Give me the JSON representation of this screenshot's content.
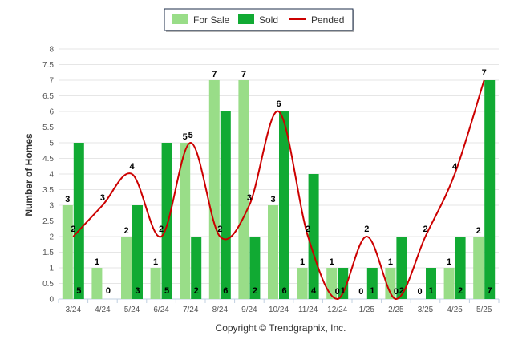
{
  "chart_data": {
    "type": "bar",
    "categories": [
      "3/24",
      "4/24",
      "5/24",
      "6/24",
      "7/24",
      "8/24",
      "9/24",
      "10/24",
      "11/24",
      "12/24",
      "1/25",
      "2/25",
      "3/25",
      "4/25",
      "5/25"
    ],
    "series": [
      {
        "name": "For Sale",
        "kind": "bar",
        "color": "#99DD88",
        "values": [
          3,
          1,
          2,
          1,
          5,
          7,
          7,
          3,
          1,
          1,
          0,
          1,
          0,
          1,
          2
        ]
      },
      {
        "name": "Sold",
        "kind": "bar",
        "color": "#11AA33",
        "values": [
          5,
          0,
          3,
          5,
          2,
          6,
          2,
          6,
          4,
          1,
          1,
          2,
          1,
          2,
          7
        ]
      },
      {
        "name": "Pended",
        "kind": "line",
        "color": "#CC0000",
        "values": [
          2,
          3,
          4,
          2,
          5,
          2,
          3,
          6,
          2,
          0,
          2,
          0,
          2,
          4,
          7
        ]
      }
    ],
    "ylabel": "Number of Homes",
    "xlabel": "",
    "ylim": [
      0,
      8
    ],
    "yticks": [
      "0",
      "0.5",
      "1",
      "1.5",
      "2",
      "2.5",
      "3",
      "3.5",
      "4",
      "4.5",
      "5",
      "5.5",
      "6",
      "6.5",
      "7",
      "7.5",
      "8"
    ],
    "grid": true,
    "legend": {
      "position": "top-center"
    },
    "footer": "Copyright © Trendgraphix, Inc."
  },
  "colors": {
    "grid": "#E6E6E6",
    "axis": "#C0D0E0",
    "legend_border": "#1C2E4A"
  }
}
